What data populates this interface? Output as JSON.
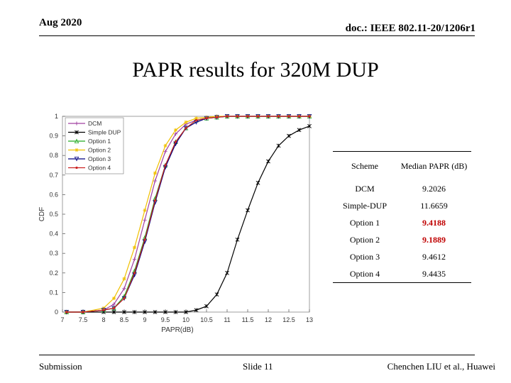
{
  "header": {
    "date": "Aug 2020",
    "doc": "doc.: IEEE 802.11-20/1206r1"
  },
  "title": "PAPR results for 320M DUP",
  "footer": {
    "left": "Submission",
    "center": "Slide 11",
    "right": "Chenchen LIU et al., Huawei"
  },
  "table": {
    "headers": [
      "Scheme",
      "Median PAPR (dB)"
    ],
    "rows": [
      {
        "scheme": "DCM",
        "value": "9.2026",
        "highlight": false
      },
      {
        "scheme": "Simple-DUP",
        "value": "11.6659",
        "highlight": false
      },
      {
        "scheme": "Option 1",
        "value": "9.4188",
        "highlight": true
      },
      {
        "scheme": "Option 2",
        "value": "9.1889",
        "highlight": true
      },
      {
        "scheme": "Option 3",
        "value": "9.4612",
        "highlight": false
      },
      {
        "scheme": "Option 4",
        "value": "9.4435",
        "highlight": false
      }
    ]
  },
  "chart_data": {
    "type": "line",
    "title": "",
    "xlabel": "PAPR(dB)",
    "ylabel": "CDF",
    "xlim": [
      7,
      13
    ],
    "ylim": [
      0,
      1
    ],
    "xticks": [
      "7",
      "7.5",
      "8",
      "8.5",
      "9",
      "9.5",
      "10",
      "10.5",
      "11",
      "11.5",
      "12",
      "12.5",
      "13"
    ],
    "yticks": [
      "0",
      "0.1",
      "0.2",
      "0.3",
      "0.4",
      "0.5",
      "0.6",
      "0.7",
      "0.8",
      "0.9",
      "1"
    ],
    "grid": false,
    "legend_position": "top-left",
    "x": [
      7.1,
      7.5,
      8.0,
      8.25,
      8.5,
      8.75,
      9.0,
      9.25,
      9.5,
      9.75,
      10.0,
      10.25,
      10.5,
      10.75,
      11.0,
      11.25,
      11.5,
      11.75,
      12.0,
      12.25,
      12.5,
      12.75,
      13.0
    ],
    "series": [
      {
        "name": "DCM",
        "color": "#a040a0",
        "marker": "plus",
        "values": [
          0,
          0,
          0.01,
          0.04,
          0.12,
          0.27,
          0.47,
          0.67,
          0.82,
          0.91,
          0.96,
          0.98,
          0.99,
          0.995,
          1,
          1,
          1,
          1,
          1,
          1,
          1,
          1,
          1
        ]
      },
      {
        "name": "Simple DUP",
        "color": "#000000",
        "marker": "star",
        "values": [
          0,
          0,
          0,
          0,
          0,
          0,
          0,
          0,
          0,
          0,
          0,
          0.01,
          0.03,
          0.09,
          0.2,
          0.37,
          0.52,
          0.66,
          0.77,
          0.85,
          0.9,
          0.93,
          0.95
        ]
      },
      {
        "name": "Option 1",
        "color": "#22aa22",
        "marker": "triangle",
        "values": [
          0,
          0,
          0.01,
          0.02,
          0.08,
          0.21,
          0.38,
          0.58,
          0.75,
          0.87,
          0.94,
          0.98,
          0.99,
          0.995,
          1,
          1,
          1,
          1,
          1,
          1,
          1,
          1,
          1
        ]
      },
      {
        "name": "Option 2",
        "color": "#f0c000",
        "marker": "asterisk",
        "values": [
          0,
          0,
          0.02,
          0.07,
          0.17,
          0.33,
          0.52,
          0.71,
          0.85,
          0.93,
          0.97,
          0.99,
          0.995,
          1,
          1,
          1,
          1,
          1,
          1,
          1,
          1,
          1,
          1
        ]
      },
      {
        "name": "Option 3",
        "color": "#000080",
        "marker": "triangle-down",
        "values": [
          0,
          0,
          0.01,
          0.02,
          0.07,
          0.19,
          0.36,
          0.56,
          0.74,
          0.86,
          0.94,
          0.97,
          0.99,
          0.995,
          1,
          1,
          1,
          1,
          1,
          1,
          1,
          1,
          1
        ]
      },
      {
        "name": "Option 4",
        "color": "#cc2222",
        "marker": "dot",
        "values": [
          0,
          0,
          0.01,
          0.02,
          0.07,
          0.2,
          0.37,
          0.57,
          0.75,
          0.87,
          0.94,
          0.98,
          0.99,
          0.995,
          1,
          1,
          1,
          1,
          1,
          1,
          1,
          1,
          1
        ]
      }
    ]
  }
}
